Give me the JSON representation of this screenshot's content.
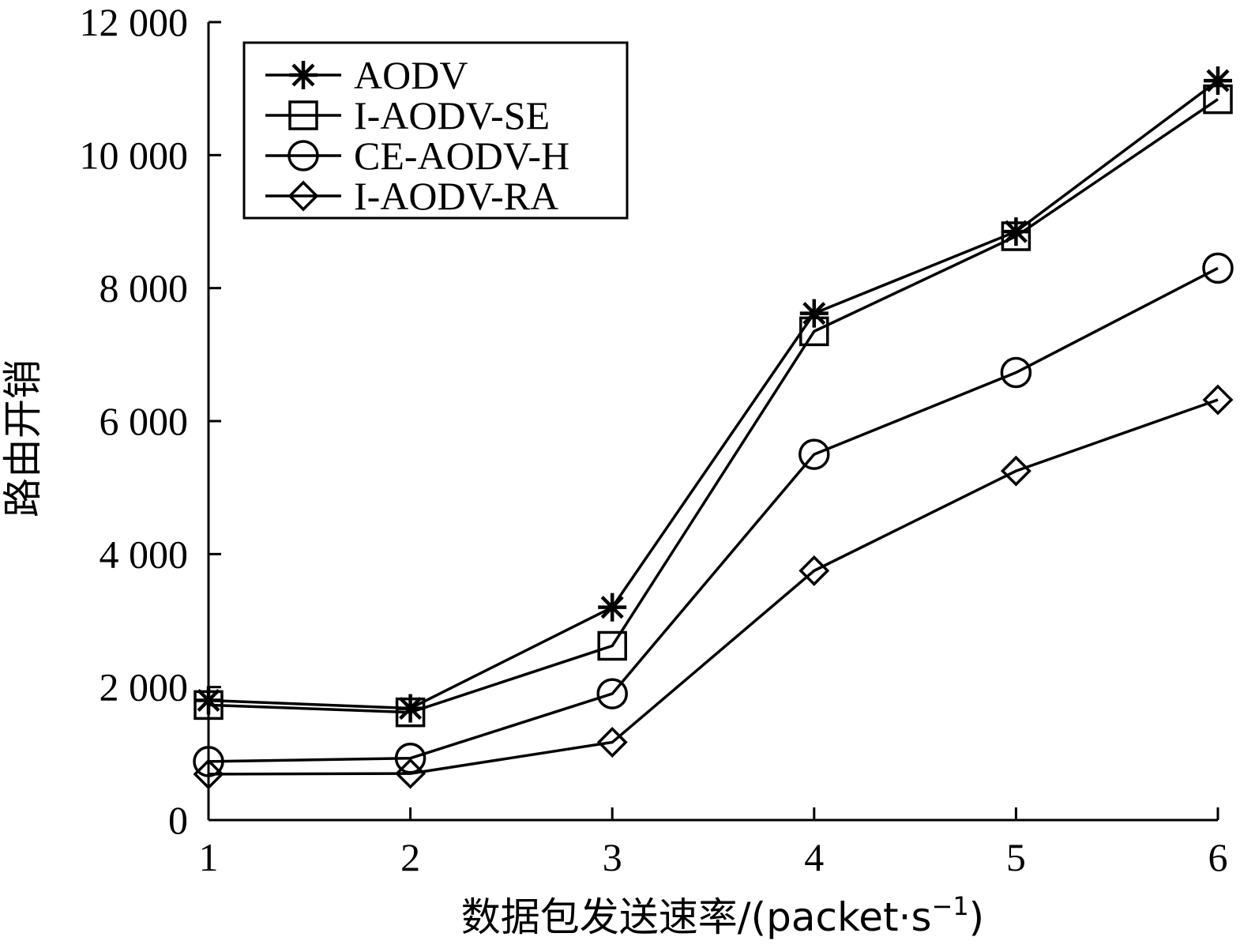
{
  "chart_data": {
    "type": "line",
    "title": "",
    "xlabel": "数据包发送速率/(packet·s",
    "xlabel_sup": "−1",
    "xlabel_close": ")",
    "ylabel": "路由开销",
    "x": [
      1,
      2,
      3,
      4,
      5,
      6
    ],
    "xlim": [
      1,
      6
    ],
    "ylim": [
      0,
      12000
    ],
    "xticks": [
      "1",
      "2",
      "3",
      "4",
      "5",
      "6"
    ],
    "yticks": [
      0,
      2000,
      4000,
      6000,
      8000,
      10000,
      12000
    ],
    "ytick_labels": [
      "0",
      "2 000",
      "4 000",
      "6 000",
      "8 000",
      "10 000",
      "12 000"
    ],
    "grid": false,
    "legend_position": "top-left",
    "series": [
      {
        "name": "AODV",
        "marker": "asterisk",
        "values": [
          1800,
          1680,
          3200,
          7620,
          8850,
          11120
        ]
      },
      {
        "name": "I-AODV-SE",
        "marker": "square",
        "values": [
          1730,
          1620,
          2620,
          7350,
          8780,
          10840
        ]
      },
      {
        "name": "CE-AODV-H",
        "marker": "circle",
        "values": [
          880,
          930,
          1900,
          5500,
          6730,
          8300
        ]
      },
      {
        "name": "I-AODV-RA",
        "marker": "diamond",
        "values": [
          690,
          700,
          1170,
          3750,
          5250,
          6320
        ]
      }
    ],
    "colors": {
      "line": "#000000",
      "background": "#ffffff"
    }
  }
}
